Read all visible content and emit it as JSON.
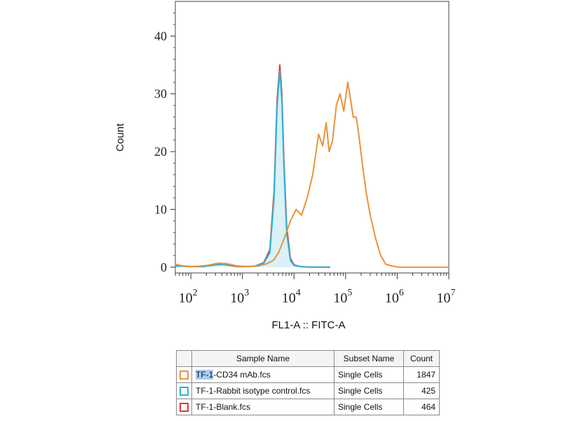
{
  "chart_data": {
    "type": "line",
    "xlabel": "FL1-A :: FITC-A",
    "ylabel": "Count",
    "xscale": "log",
    "xlim": [
      50,
      10000000
    ],
    "ylim": [
      -1,
      46
    ],
    "y_ticks": [
      0,
      10,
      20,
      30,
      40
    ],
    "x_ticks": [
      {
        "value": 100,
        "base": "10",
        "exp": "2"
      },
      {
        "value": 1000,
        "base": "10",
        "exp": "3"
      },
      {
        "value": 10000,
        "base": "10",
        "exp": "4"
      },
      {
        "value": 100000,
        "base": "10",
        "exp": "5"
      },
      {
        "value": 1000000,
        "base": "10",
        "exp": "6"
      },
      {
        "value": 10000000,
        "base": "10",
        "exp": "7"
      }
    ],
    "grid": false,
    "series": [
      {
        "name": "TF-1-Blank.fcs",
        "color": "#d9393a",
        "fill": false,
        "x": [
          50,
          100,
          180,
          300,
          500,
          800,
          1200,
          1800,
          2600,
          3400,
          4100,
          4700,
          5300,
          5800,
          6400,
          7200,
          8500,
          10000,
          13000,
          20000,
          50000
        ],
        "y": [
          0.3,
          0.1,
          0.1,
          0.6,
          0.4,
          0.1,
          0.1,
          0.2,
          0.8,
          3,
          13,
          29,
          35,
          30,
          18,
          7,
          1.5,
          0.4,
          0.1,
          0,
          0
        ]
      },
      {
        "name": "TF-1-Rabbit isotype control.fcs",
        "color": "#2cb4d4",
        "fill": true,
        "x": [
          50,
          100,
          180,
          300,
          500,
          800,
          1200,
          1800,
          2600,
          3400,
          4100,
          4700,
          5300,
          5800,
          6400,
          7200,
          8500,
          10000,
          13000,
          20000,
          50000
        ],
        "y": [
          0.2,
          0.1,
          0.1,
          0.4,
          0.5,
          0.2,
          0.1,
          0.2,
          0.7,
          2.5,
          12,
          28,
          34,
          29,
          17,
          6,
          1.2,
          0.3,
          0.1,
          0,
          0
        ]
      },
      {
        "name": "TF-1-CD34 mAb.fcs",
        "color": "#e9933a",
        "fill": false,
        "x": [
          50,
          80,
          120,
          200,
          350,
          500,
          800,
          1300,
          2000,
          3000,
          4000,
          5000,
          6500,
          8500,
          11000,
          14000,
          18000,
          23000,
          30000,
          36000,
          42000,
          48000,
          56000,
          66000,
          78000,
          92000,
          110000,
          125000,
          140000,
          160000,
          180000,
          210000,
          250000,
          300000,
          380000,
          480000,
          600000,
          800000,
          1100000,
          1500000,
          2000000,
          3000000,
          10000000
        ],
        "y": [
          0.5,
          0.1,
          0.1,
          0.3,
          0.7,
          0.6,
          0.2,
          0.1,
          0.2,
          0.6,
          1.2,
          2.5,
          5,
          8,
          10,
          9,
          12,
          16,
          23,
          21,
          25,
          20,
          22,
          28,
          30,
          27,
          32,
          29,
          26,
          26,
          23,
          18,
          13,
          9,
          5,
          2,
          0.5,
          0.2,
          0,
          0,
          0,
          0,
          0
        ]
      }
    ],
    "legend": {
      "placement": "below",
      "headers": [
        "Sample Name",
        "Subset Name",
        "Count"
      ],
      "rows": [
        {
          "color": "#e9933a",
          "name_highlight": "TF-1",
          "name_rest": "-CD34 mAb.fcs",
          "subset": "Single Cells",
          "count": "1847"
        },
        {
          "color": "#2cb4d4",
          "name_highlight": "",
          "name_rest": "TF-1-Rabbit isotype control.fcs",
          "subset": "Single Cells",
          "count": "425"
        },
        {
          "color": "#d9393a",
          "name_highlight": "",
          "name_rest": "TF-1-Blank.fcs",
          "subset": "Single Cells",
          "count": "464"
        }
      ]
    }
  }
}
